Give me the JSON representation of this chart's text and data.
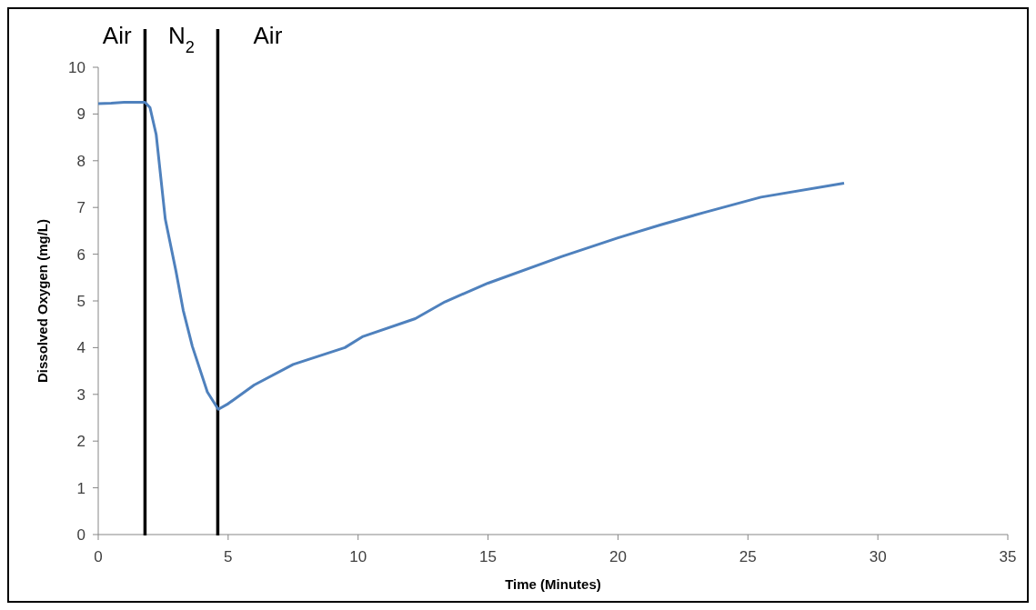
{
  "chart_data": {
    "type": "line",
    "xlabel": "Time (Minutes)",
    "ylabel": "Dissolved Oxygen (mg/L)",
    "xlim": [
      0,
      35
    ],
    "xticks": [
      0,
      5,
      10,
      15,
      20,
      25,
      30,
      35
    ],
    "ylim": [
      0,
      10
    ],
    "yticks": [
      0,
      1,
      2,
      3,
      4,
      5,
      6,
      7,
      8,
      9,
      10
    ],
    "grid": false,
    "series": [
      {
        "color": "#4f81bd",
        "x": [
          0,
          0.5,
          1,
          1.5,
          1.8,
          1.99,
          2.23,
          2.58,
          2.99,
          3.27,
          3.62,
          4.2,
          4.62,
          5,
          6,
          7.5,
          9.49,
          10.19,
          12.2,
          13.34,
          15,
          17.84,
          20,
          21.65,
          23.3,
          25.5,
          28.7
        ],
        "values": [
          9.22,
          9.23,
          9.25,
          9.25,
          9.25,
          9.14,
          8.56,
          6.75,
          5.64,
          4.8,
          4.03,
          3.05,
          2.68,
          2.8,
          3.2,
          3.64,
          4.0,
          4.24,
          4.62,
          4.98,
          5.38,
          5.95,
          6.35,
          6.63,
          6.89,
          7.22,
          7.52
        ]
      }
    ],
    "ref_lines": [
      {
        "axis": "x",
        "value": 1.8,
        "color": "#000000"
      },
      {
        "axis": "x",
        "value": 4.6,
        "color": "#000000"
      }
    ],
    "annotations": [
      "Air",
      "N$_{2}$",
      "Air"
    ]
  }
}
